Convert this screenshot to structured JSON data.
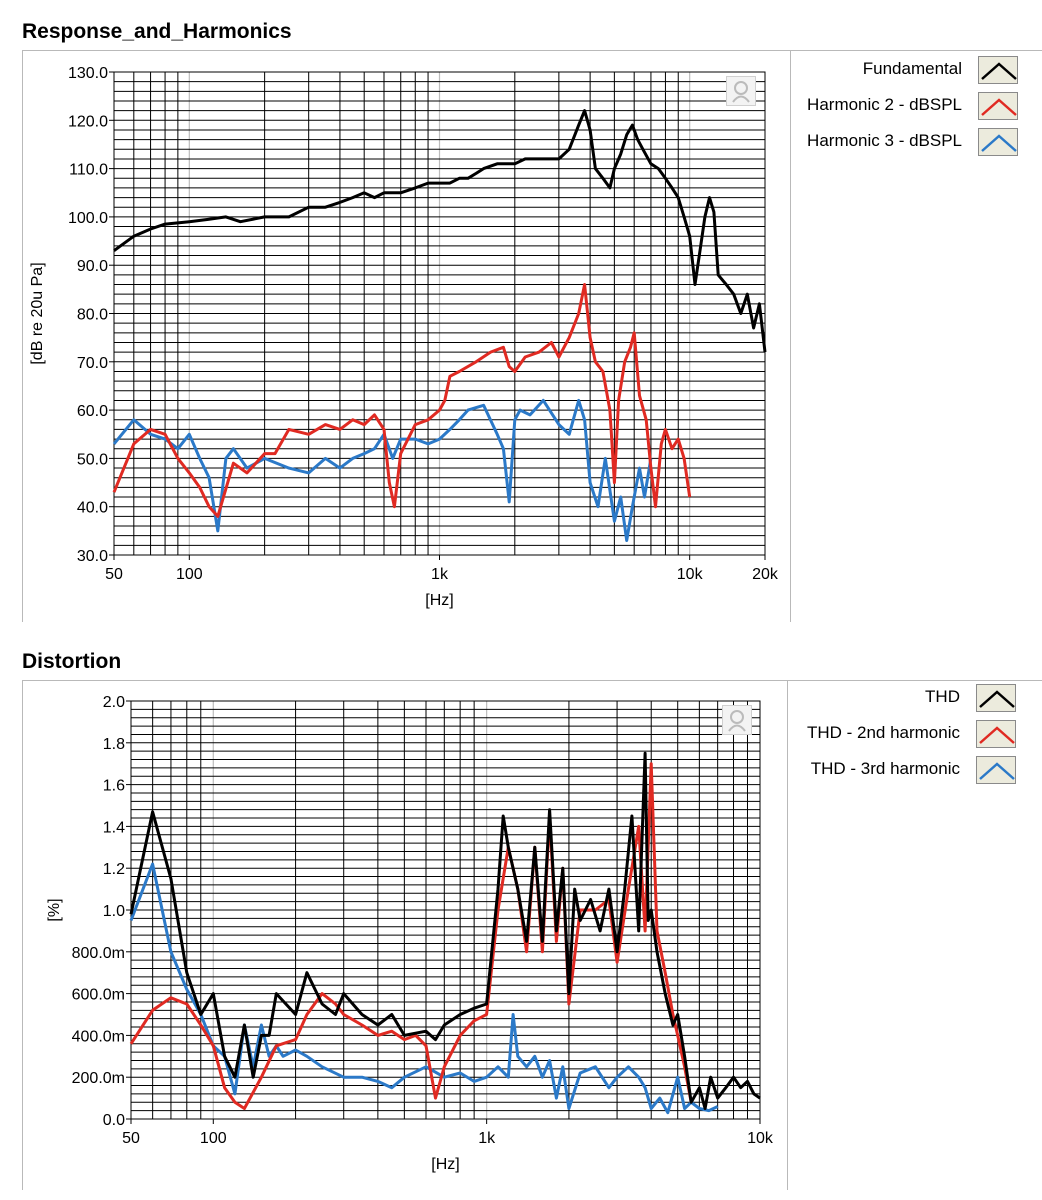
{
  "panels": [
    {
      "title": "Response_and_Harmonics",
      "legend": [
        {
          "label": "Fundamental",
          "color": "#000000"
        },
        {
          "label": "Harmonic 2 - dBSPL",
          "color": "#e02a22"
        },
        {
          "label": "Harmonic 3 - dBSPL",
          "color": "#2b79c8"
        }
      ]
    },
    {
      "title": "Distortion",
      "legend": [
        {
          "label": "THD",
          "color": "#000000"
        },
        {
          "label": "THD - 2nd harmonic",
          "color": "#e02a22"
        },
        {
          "label": "THD - 3rd harmonic",
          "color": "#2b79c8"
        }
      ]
    }
  ],
  "icons": {
    "tool_icon": "graph-tool-icon"
  },
  "chart_data": [
    {
      "type": "line",
      "title": "Response_and_Harmonics",
      "xlabel": "[Hz]",
      "ylabel": "[dB re 20u Pa]",
      "xscale": "log",
      "xlim": [
        50,
        20000
      ],
      "ylim": [
        30,
        130
      ],
      "xticks": [
        50,
        100,
        1000,
        10000,
        20000
      ],
      "xtick_labels": [
        "50",
        "100",
        "1k",
        "10k",
        "20k"
      ],
      "yticks": [
        30,
        40,
        50,
        60,
        70,
        80,
        90,
        100,
        110,
        120,
        130
      ],
      "ytick_labels": [
        "30.0",
        "40.0",
        "50.0",
        "60.0",
        "70.0",
        "80.0",
        "90.0",
        "100.0",
        "110.0",
        "120.0",
        "130.0"
      ],
      "grid": true,
      "legend_position": "right",
      "series": [
        {
          "name": "Fundamental",
          "color": "#000000",
          "x": [
            50,
            60,
            70,
            80,
            100,
            120,
            140,
            160,
            200,
            250,
            300,
            350,
            400,
            450,
            500,
            550,
            600,
            700,
            800,
            900,
            1000,
            1100,
            1200,
            1300,
            1400,
            1500,
            1700,
            2000,
            2200,
            2500,
            2800,
            3000,
            3300,
            3600,
            3800,
            4000,
            4200,
            4500,
            4800,
            5000,
            5300,
            5600,
            5900,
            6200,
            6500,
            7000,
            7500,
            8000,
            8500,
            9000,
            9500,
            10000,
            10500,
            11000,
            11500,
            12000,
            12500,
            13000,
            14000,
            15000,
            16000,
            17000,
            18000,
            19000,
            20000
          ],
          "y": [
            93,
            96,
            97.5,
            98.5,
            99,
            99.5,
            100,
            99,
            100,
            100,
            102,
            102,
            103,
            104,
            105,
            104,
            105,
            105,
            106,
            107,
            107,
            107,
            108,
            108,
            109,
            110,
            111,
            111,
            112,
            112,
            112,
            112,
            114,
            119,
            122,
            118,
            110,
            108,
            106,
            110,
            113,
            117,
            119,
            116,
            114,
            111,
            110,
            108,
            106,
            104,
            100,
            96,
            86,
            93,
            100,
            104,
            101,
            88,
            86,
            84,
            80,
            84,
            77,
            82,
            72
          ]
        },
        {
          "name": "Harmonic 2 - dBSPL",
          "color": "#e02a22",
          "x": [
            50,
            60,
            70,
            80,
            90,
            100,
            110,
            120,
            130,
            150,
            170,
            200,
            220,
            250,
            300,
            350,
            400,
            450,
            500,
            550,
            600,
            630,
            660,
            700,
            800,
            900,
            1000,
            1050,
            1100,
            1200,
            1400,
            1600,
            1800,
            1900,
            2000,
            2200,
            2500,
            2800,
            3000,
            3300,
            3600,
            3800,
            4000,
            4200,
            4500,
            4800,
            5000,
            5200,
            5500,
            5800,
            6000,
            6300,
            6700,
            7000,
            7300,
            7700,
            8000,
            8500,
            9000,
            9500,
            10000
          ],
          "y": [
            43,
            53,
            56,
            55,
            50,
            47,
            44,
            40,
            38,
            49,
            47,
            51,
            51,
            56,
            55,
            57,
            56,
            58,
            57,
            59,
            56,
            45,
            40,
            51,
            57,
            58,
            60,
            62,
            67,
            68,
            70,
            72,
            73,
            69,
            68,
            71,
            72,
            74,
            71,
            75,
            80,
            86,
            75,
            70,
            68,
            60,
            45,
            62,
            70,
            73,
            76,
            63,
            58,
            48,
            40,
            53,
            56,
            52,
            54,
            50,
            42
          ]
        },
        {
          "name": "Harmonic 3 - dBSPL",
          "color": "#2b79c8",
          "x": [
            50,
            60,
            70,
            80,
            90,
            100,
            110,
            120,
            130,
            140,
            150,
            170,
            200,
            250,
            300,
            350,
            400,
            450,
            500,
            550,
            600,
            650,
            700,
            800,
            900,
            1000,
            1100,
            1200,
            1300,
            1500,
            1700,
            1800,
            1900,
            2000,
            2100,
            2300,
            2600,
            3000,
            3300,
            3600,
            3800,
            4000,
            4300,
            4600,
            5000,
            5300,
            5600,
            5900,
            6300,
            6600,
            7000
          ],
          "y": [
            53,
            58,
            55,
            54,
            52,
            55,
            50,
            46,
            35,
            50,
            52,
            48,
            50,
            48,
            47,
            50,
            48,
            50,
            51,
            52,
            55,
            50,
            54,
            54,
            53,
            54,
            56,
            58,
            60,
            61,
            55,
            52,
            41,
            58,
            60,
            59,
            62,
            57,
            55,
            62,
            58,
            45,
            40,
            50,
            37,
            42,
            33,
            40,
            48,
            42,
            50
          ]
        }
      ]
    },
    {
      "type": "line",
      "title": "Distortion",
      "xlabel": "[Hz]",
      "ylabel": "[%]",
      "xscale": "log",
      "xlim": [
        50,
        10000
      ],
      "ylim": [
        0,
        2.0
      ],
      "xticks": [
        50,
        100,
        1000,
        10000
      ],
      "xtick_labels": [
        "50",
        "100",
        "1k",
        "10k"
      ],
      "yticks": [
        0,
        0.2,
        0.4,
        0.6,
        0.8,
        1.0,
        1.2,
        1.4,
        1.6,
        1.8,
        2.0
      ],
      "ytick_labels": [
        "0.0",
        "200.0m",
        "400.0m",
        "600.0m",
        "800.0m",
        "1.0",
        "1.2",
        "1.4",
        "1.6",
        "1.8",
        "2.0"
      ],
      "grid": true,
      "legend_position": "right",
      "series": [
        {
          "name": "THD",
          "color": "#000000",
          "x": [
            50,
            60,
            70,
            80,
            90,
            100,
            110,
            120,
            130,
            140,
            150,
            160,
            170,
            200,
            220,
            250,
            280,
            300,
            350,
            400,
            450,
            500,
            600,
            650,
            700,
            800,
            900,
            1000,
            1100,
            1150,
            1200,
            1300,
            1400,
            1500,
            1600,
            1700,
            1800,
            1900,
            2000,
            2100,
            2200,
            2400,
            2600,
            2800,
            3000,
            3200,
            3400,
            3600,
            3800,
            3900,
            4000,
            4200,
            4500,
            4800,
            5000,
            5300,
            5600,
            6000,
            6300,
            6600,
            7000,
            7500,
            8000,
            8500,
            9000,
            9500,
            10000
          ],
          "y": [
            0.98,
            1.47,
            1.15,
            0.7,
            0.5,
            0.6,
            0.3,
            0.2,
            0.45,
            0.2,
            0.4,
            0.4,
            0.6,
            0.5,
            0.7,
            0.55,
            0.5,
            0.6,
            0.5,
            0.45,
            0.5,
            0.4,
            0.42,
            0.38,
            0.45,
            0.5,
            0.53,
            0.55,
            1.1,
            1.45,
            1.3,
            1.1,
            0.85,
            1.3,
            0.85,
            1.48,
            0.9,
            1.2,
            0.6,
            1.1,
            0.95,
            1.05,
            0.9,
            1.1,
            0.8,
            1.1,
            1.45,
            0.9,
            1.75,
            0.95,
            1.0,
            0.8,
            0.6,
            0.45,
            0.5,
            0.3,
            0.08,
            0.15,
            0.05,
            0.2,
            0.1,
            0.15,
            0.2,
            0.15,
            0.18,
            0.12,
            0.1
          ]
        },
        {
          "name": "THD - 2nd harmonic",
          "color": "#e02a22",
          "x": [
            50,
            60,
            70,
            80,
            90,
            100,
            110,
            120,
            130,
            150,
            170,
            200,
            220,
            250,
            280,
            300,
            350,
            400,
            450,
            500,
            550,
            600,
            650,
            700,
            800,
            900,
            1000,
            1100,
            1200,
            1300,
            1400,
            1500,
            1600,
            1700,
            1800,
            1900,
            2000,
            2200,
            2500,
            2800,
            3000,
            3300,
            3600,
            3800,
            4000,
            4200,
            4500,
            4800,
            5000,
            5300,
            5600
          ],
          "y": [
            0.36,
            0.52,
            0.58,
            0.55,
            0.45,
            0.35,
            0.15,
            0.08,
            0.05,
            0.2,
            0.35,
            0.38,
            0.5,
            0.6,
            0.55,
            0.5,
            0.45,
            0.4,
            0.42,
            0.38,
            0.4,
            0.35,
            0.1,
            0.25,
            0.4,
            0.47,
            0.5,
            1.0,
            1.3,
            1.1,
            0.8,
            1.3,
            0.8,
            1.45,
            0.85,
            1.2,
            0.55,
            1.0,
            1.0,
            1.05,
            0.75,
            1.1,
            1.4,
            0.9,
            1.7,
            0.9,
            0.7,
            0.5,
            0.4,
            0.25,
            0.08
          ]
        },
        {
          "name": "THD - 3rd harmonic",
          "color": "#2b79c8",
          "x": [
            50,
            60,
            70,
            80,
            90,
            100,
            110,
            120,
            130,
            140,
            150,
            160,
            170,
            180,
            200,
            220,
            250,
            300,
            350,
            400,
            450,
            500,
            600,
            700,
            800,
            900,
            1000,
            1100,
            1200,
            1250,
            1300,
            1400,
            1500,
            1600,
            1700,
            1800,
            1900,
            2000,
            2200,
            2500,
            2800,
            3000,
            3300,
            3600,
            3800,
            4000,
            4300,
            4600,
            5000,
            5300,
            5600,
            6000,
            6500,
            7000
          ],
          "y": [
            0.95,
            1.22,
            0.8,
            0.62,
            0.5,
            0.35,
            0.3,
            0.12,
            0.45,
            0.25,
            0.45,
            0.3,
            0.35,
            0.3,
            0.33,
            0.3,
            0.25,
            0.2,
            0.2,
            0.18,
            0.15,
            0.2,
            0.25,
            0.2,
            0.22,
            0.18,
            0.2,
            0.25,
            0.2,
            0.5,
            0.3,
            0.25,
            0.3,
            0.2,
            0.28,
            0.1,
            0.25,
            0.05,
            0.22,
            0.25,
            0.15,
            0.2,
            0.25,
            0.2,
            0.15,
            0.05,
            0.1,
            0.03,
            0.2,
            0.05,
            0.08,
            0.05,
            0.04,
            0.06
          ]
        }
      ]
    }
  ]
}
